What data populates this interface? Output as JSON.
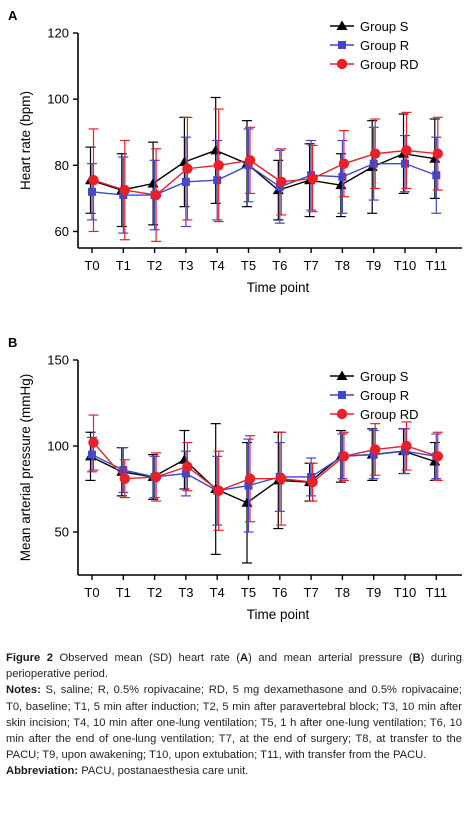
{
  "chart_data": [
    {
      "panel": "A",
      "type": "line",
      "title": "",
      "xlabel": "Time point",
      "ylabel": "Heart rate (bpm)",
      "ylim": [
        55,
        120
      ],
      "yticks": [
        60,
        80,
        100,
        120
      ],
      "categories": [
        "T0",
        "T1",
        "T2",
        "T3",
        "T4",
        "T5",
        "T6",
        "T7",
        "T8",
        "T9",
        "T10",
        "T11"
      ],
      "legend_position": "top-right",
      "series": [
        {
          "name": "Group S",
          "color": "#000000",
          "marker": "triangle",
          "values": [
            75.5,
            72.5,
            74.5,
            81,
            84.5,
            80.5,
            72.5,
            75.5,
            74,
            79.5,
            83.5,
            82
          ],
          "sd": [
            10,
            11,
            12.5,
            13.5,
            16,
            13,
            9,
            11,
            9.5,
            14,
            12,
            12
          ]
        },
        {
          "name": "Group R",
          "color": "#3f48cc",
          "marker": "square",
          "values": [
            72,
            71,
            71,
            75,
            75.5,
            80,
            73.5,
            77,
            76.5,
            80.5,
            80.5,
            77
          ],
          "sd": [
            8.5,
            11.5,
            10.5,
            13.5,
            12,
            11,
            11,
            10.5,
            11,
            11,
            8.5,
            11.5
          ]
        },
        {
          "name": "Group RD",
          "color": "#e8202a",
          "marker": "circle",
          "values": [
            75.5,
            72.5,
            71,
            79,
            80,
            81.5,
            75,
            76,
            80.5,
            83.5,
            84.5,
            83.5
          ],
          "sd": [
            15.5,
            15,
            14,
            15.5,
            17,
            10,
            10,
            10,
            10,
            10.5,
            11.5,
            11
          ]
        }
      ]
    },
    {
      "panel": "B",
      "type": "line",
      "title": "",
      "xlabel": "Time point",
      "ylabel": "Mean arterial pressure (mmHg)",
      "ylim": [
        25,
        150
      ],
      "yticks": [
        50,
        100,
        150
      ],
      "categories": [
        "T0",
        "T1",
        "T2",
        "T3",
        "T4",
        "T5",
        "T6",
        "T7",
        "T8",
        "T9",
        "T10",
        "T11"
      ],
      "legend_position": "top-right",
      "series": [
        {
          "name": "Group S",
          "color": "#000000",
          "marker": "triangle",
          "values": [
            94,
            85,
            82,
            92,
            75,
            67,
            80,
            79,
            94,
            95,
            97,
            91
          ],
          "sd": [
            14,
            14,
            13,
            17,
            38,
            35,
            28,
            11,
            15,
            15,
            13,
            11
          ]
        },
        {
          "name": "Group R",
          "color": "#3f48cc",
          "marker": "square",
          "values": [
            95,
            86,
            82,
            84,
            74,
            77,
            82,
            82,
            94,
            95,
            97,
            94
          ],
          "sd": [
            10,
            13,
            12,
            13,
            20,
            27,
            20,
            11,
            13,
            14,
            13,
            13
          ]
        },
        {
          "name": "Group RD",
          "color": "#e8202a",
          "marker": "circle",
          "values": [
            102,
            81,
            82,
            88,
            74,
            81,
            81,
            79,
            94,
            98,
            100,
            94
          ],
          "sd": [
            16,
            11,
            14,
            14,
            23,
            25,
            27,
            11,
            14,
            15,
            14,
            14
          ]
        }
      ]
    }
  ],
  "caption": {
    "figure_label": "Figure 2",
    "figure_text": " Observed mean (SD) heart rate (",
    "figure_text_2": ") and mean arterial pressure (",
    "figure_text_3": ") during perioperative period.",
    "letter_a": "A",
    "letter_b": "B",
    "notes_label": "Notes:",
    "notes_text": " S, saline; R, 0.5% ropivacaine; RD, 5 mg dexamethasone and 0.5% ropivacaine; T0, baseline; T1, 5 min after induction; T2, 5 min after paravertebral block; T3, 10 min after skin incision; T4, 10 min after one-lung ventilation; T5, 1 h after one-lung ventilation; T6, 10 min after the end of one-lung ventilation; T7, at the end of surgery; T8, at transfer to the PACU; T9, upon awakening; T10, upon extubation; T11, with transfer from the PACU.",
    "abbrev_label": "Abbreviation:",
    "abbrev_text": " PACU, postanaesthesia care unit."
  }
}
